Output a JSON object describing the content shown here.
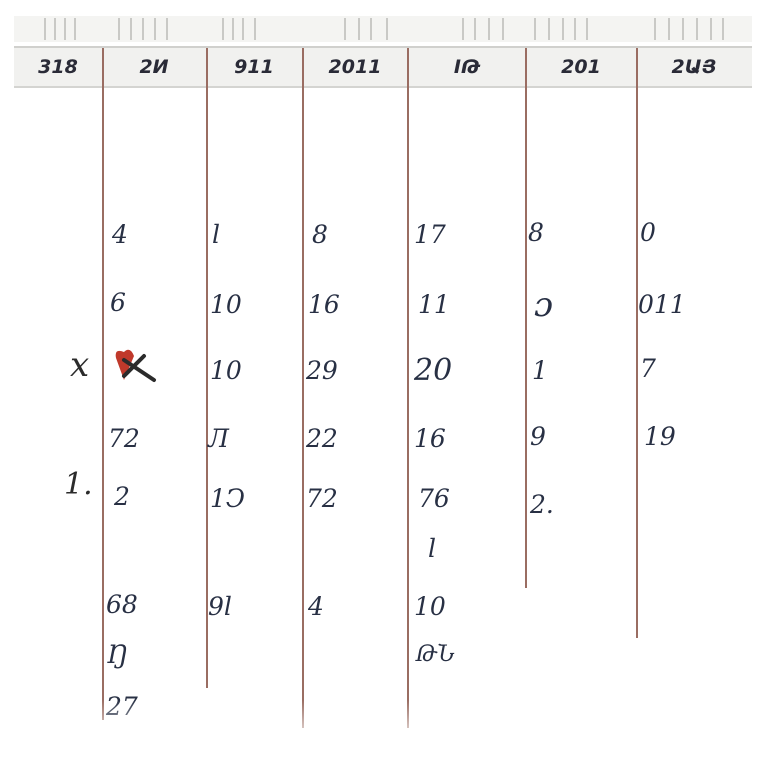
{
  "headers": [
    "318",
    "2И",
    "911",
    "2011",
    "ІԹ",
    "201",
    "2ԱՅ"
  ],
  "columns": [
    [
      "",
      "",
      "",
      "",
      "",
      "",
      ""
    ],
    [
      "4",
      "6",
      "",
      "72",
      "2",
      "68",
      "Ŋ",
      "27"
    ],
    [
      "l",
      "10",
      "10",
      "Л",
      "1Ͻ",
      "9l"
    ],
    [
      "8",
      "16",
      "29",
      "22",
      "72",
      "4"
    ],
    [
      "17",
      "11",
      "20",
      "16",
      "76",
      "l",
      "10",
      "ԹՆ"
    ],
    [
      "8",
      "ɔ",
      "1",
      "9",
      "2."
    ],
    [
      "0",
      "011",
      "7",
      "19"
    ]
  ],
  "marks": [
    "х",
    "1."
  ],
  "colors": {
    "accent": "#c0392b",
    "grid": "#9a6d62",
    "ink": "#283044"
  },
  "icons": [
    "heart-cross-icon"
  ]
}
